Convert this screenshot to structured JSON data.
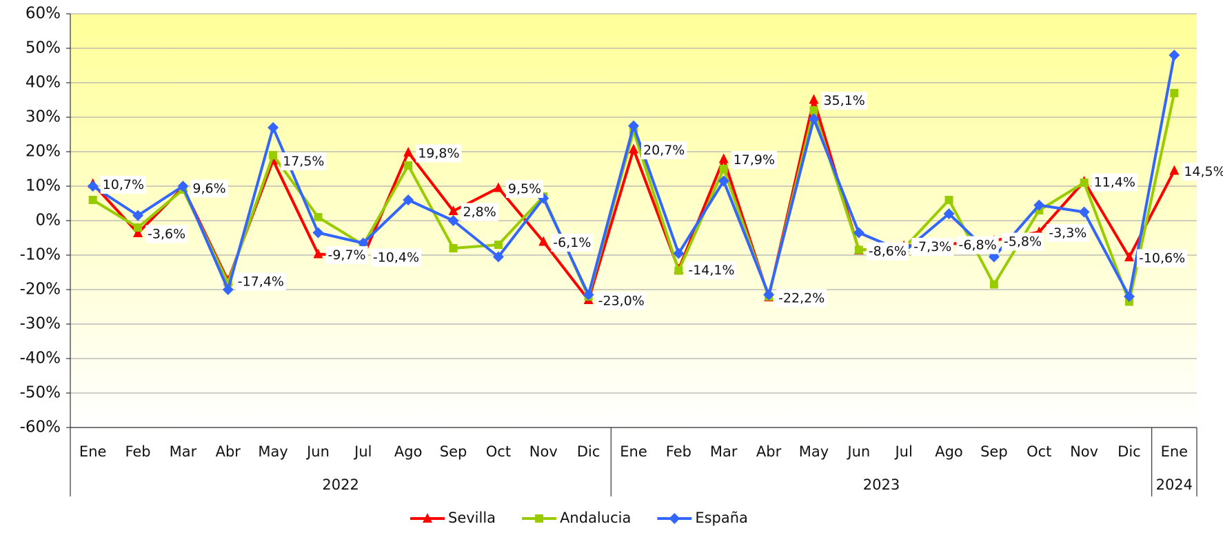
{
  "chart_data": {
    "type": "line",
    "categories": [
      "Ene",
      "Feb",
      "Mar",
      "Abr",
      "May",
      "Jun",
      "Jul",
      "Ago",
      "Sep",
      "Oct",
      "Nov",
      "Dic",
      "Ene",
      "Feb",
      "Mar",
      "Abr",
      "May",
      "Jun",
      "Jul",
      "Ago",
      "Sep",
      "Oct",
      "Nov",
      "Dic",
      "Ene"
    ],
    "years": [
      "2022",
      "2023",
      "2024"
    ],
    "series": [
      {
        "name": "Sevilla",
        "color": "#ff0000",
        "marker": "triangle",
        "values": [
          10.7,
          -3.6,
          9.6,
          -17.4,
          17.5,
          -9.7,
          -10.4,
          19.8,
          2.8,
          9.5,
          -6.1,
          -23.0,
          20.7,
          -14.1,
          17.9,
          -22.2,
          35.1,
          -8.6,
          -7.3,
          -6.8,
          -5.8,
          -3.3,
          11.4,
          -10.6,
          14.5
        ],
        "value_labels": [
          "10,7%",
          "-3,6%",
          "9,6%",
          "-17,4%",
          "17,5%",
          "-9,7%",
          "-10,4%",
          "19,8%",
          "2,8%",
          "9,5%",
          "-6,1%",
          "-23,0%",
          "20,7%",
          "-14,1%",
          "17,9%",
          "-22,2%",
          "35,1%",
          "-8,6%",
          "-7,3%",
          "-6,8%",
          "-5,8%",
          "-3,3%",
          "11,4%",
          "-10,6%",
          "14,5%"
        ]
      },
      {
        "name": "Andalucia",
        "color": "#99cc00",
        "marker": "square",
        "values": [
          6,
          -2,
          9,
          -18,
          19,
          1,
          -7,
          16,
          -8,
          -7,
          7,
          -22,
          26,
          -14.5,
          15,
          -22,
          32,
          -8.5,
          -8,
          6,
          -18.5,
          3,
          11,
          -23.5,
          37
        ]
      },
      {
        "name": "España",
        "color": "#3366ff",
        "marker": "diamond",
        "values": [
          10,
          1.5,
          10,
          -20,
          27,
          -3.5,
          -6.5,
          6,
          0,
          -10.5,
          6.5,
          -21.5,
          27.5,
          -9.5,
          11.5,
          -21.5,
          29.5,
          -3.5,
          -9,
          2,
          -10.5,
          4.5,
          2.5,
          -22,
          48
        ]
      }
    ],
    "ylim": [
      -60,
      60
    ],
    "yticks": [
      {
        "value": -60,
        "label": "-60%"
      },
      {
        "value": -50,
        "label": "-50%"
      },
      {
        "value": -40,
        "label": "-40%"
      },
      {
        "value": -30,
        "label": "-30%"
      },
      {
        "value": -20,
        "label": "-20%"
      },
      {
        "value": -10,
        "label": "-10%"
      },
      {
        "value": 0,
        "label": "0%"
      },
      {
        "value": 10,
        "label": "10%"
      },
      {
        "value": 20,
        "label": "20%"
      },
      {
        "value": 30,
        "label": "30%"
      },
      {
        "value": 40,
        "label": "40%"
      },
      {
        "value": 50,
        "label": "50%"
      },
      {
        "value": 60,
        "label": "60%"
      }
    ],
    "grid": true,
    "legend": "bottom"
  }
}
